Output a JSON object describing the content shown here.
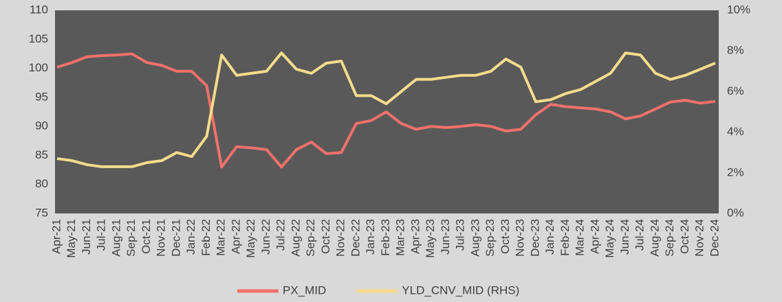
{
  "chart_data": {
    "type": "line",
    "categories": [
      "Apr-21",
      "May-21",
      "Jun-21",
      "Jul-21",
      "Aug-21",
      "Sep-21",
      "Oct-21",
      "Nov-21",
      "Dec-21",
      "Jan-22",
      "Feb-22",
      "Mar-22",
      "Apr-22",
      "May-22",
      "Jun-22",
      "Jul-22",
      "Aug-22",
      "Sep-22",
      "Oct-22",
      "Nov-22",
      "Dec-22",
      "Jan-23",
      "Feb-23",
      "Mar-23",
      "Apr-23",
      "May-23",
      "Jun-23",
      "Jul-23",
      "Aug-23",
      "Sep-23",
      "Oct-23",
      "Nov-23",
      "Dec-23",
      "Jan-24",
      "Feb-24",
      "Mar-24",
      "Apr-24",
      "May-24",
      "Jun-24",
      "Jul-24",
      "Aug-24",
      "Sep-24",
      "Oct-24",
      "Nov-24",
      "Dec-24"
    ],
    "series": [
      {
        "name": "PX_MID",
        "color": "#f2716b",
        "values": [
          100.2,
          101,
          102,
          102.2,
          102.3,
          102.5,
          101,
          100.5,
          99.5,
          99.5,
          97,
          83,
          86.5,
          86.3,
          86,
          83,
          86,
          87.3,
          85.3,
          85.5,
          90.5,
          91,
          92.5,
          90.5,
          89.5,
          90,
          89.8,
          90,
          90.3,
          90,
          89.2,
          89.5,
          92,
          93.8,
          93.4,
          93.2,
          93,
          92.5,
          91.3,
          91.8,
          93,
          94.2,
          94.5,
          94,
          94.3
        ]
      },
      {
        "name": "YLD_CNV_MID (RHS)",
        "color": "#f5dc8c",
        "axis": "y2",
        "values": [
          2.7,
          2.6,
          2.4,
          2.3,
          2.3,
          2.3,
          2.5,
          2.6,
          3.0,
          2.8,
          3.8,
          7.8,
          6.8,
          6.9,
          7.0,
          7.9,
          7.1,
          6.9,
          7.4,
          7.5,
          5.8,
          5.8,
          5.4,
          6.0,
          6.6,
          6.6,
          6.7,
          6.8,
          6.8,
          7.0,
          7.6,
          7.2,
          5.5,
          5.6,
          5.9,
          6.1,
          6.5,
          6.9,
          7.9,
          7.8,
          6.9,
          6.6,
          6.8,
          7.1,
          7.4
        ]
      }
    ],
    "ylim": [
      75,
      110
    ],
    "yticks": [
      75,
      80,
      85,
      90,
      95,
      100,
      105,
      110
    ],
    "y2lim": [
      0,
      10
    ],
    "y2ticks": [
      {
        "value": 0,
        "label": "0%"
      },
      {
        "value": 2,
        "label": "2%"
      },
      {
        "value": 4,
        "label": "4%"
      },
      {
        "value": 6,
        "label": "6%"
      },
      {
        "value": 8,
        "label": "8%"
      },
      {
        "value": 10,
        "label": "10%"
      }
    ],
    "legend": "bottom"
  }
}
